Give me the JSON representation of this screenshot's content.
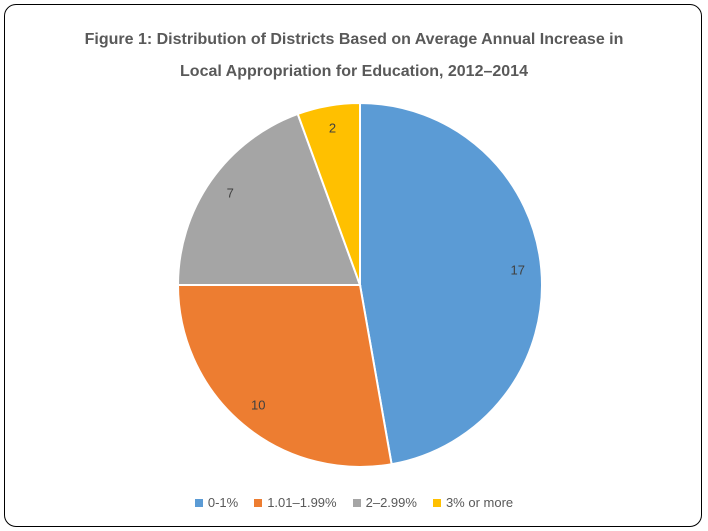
{
  "chart_data": {
    "type": "pie",
    "title": "Figure 1: Distribution of Districts Based on Average Annual Increase in Local Appropriation for Education, 2012–2014",
    "categories": [
      "0-1%",
      "1.01–1.99%",
      "2–2.99%",
      "3% or more"
    ],
    "values": [
      17,
      10,
      7,
      2
    ],
    "colors": [
      "#5b9bd5",
      "#ed7d31",
      "#a5a5a5",
      "#ffc000"
    ],
    "legend": "bottom"
  }
}
